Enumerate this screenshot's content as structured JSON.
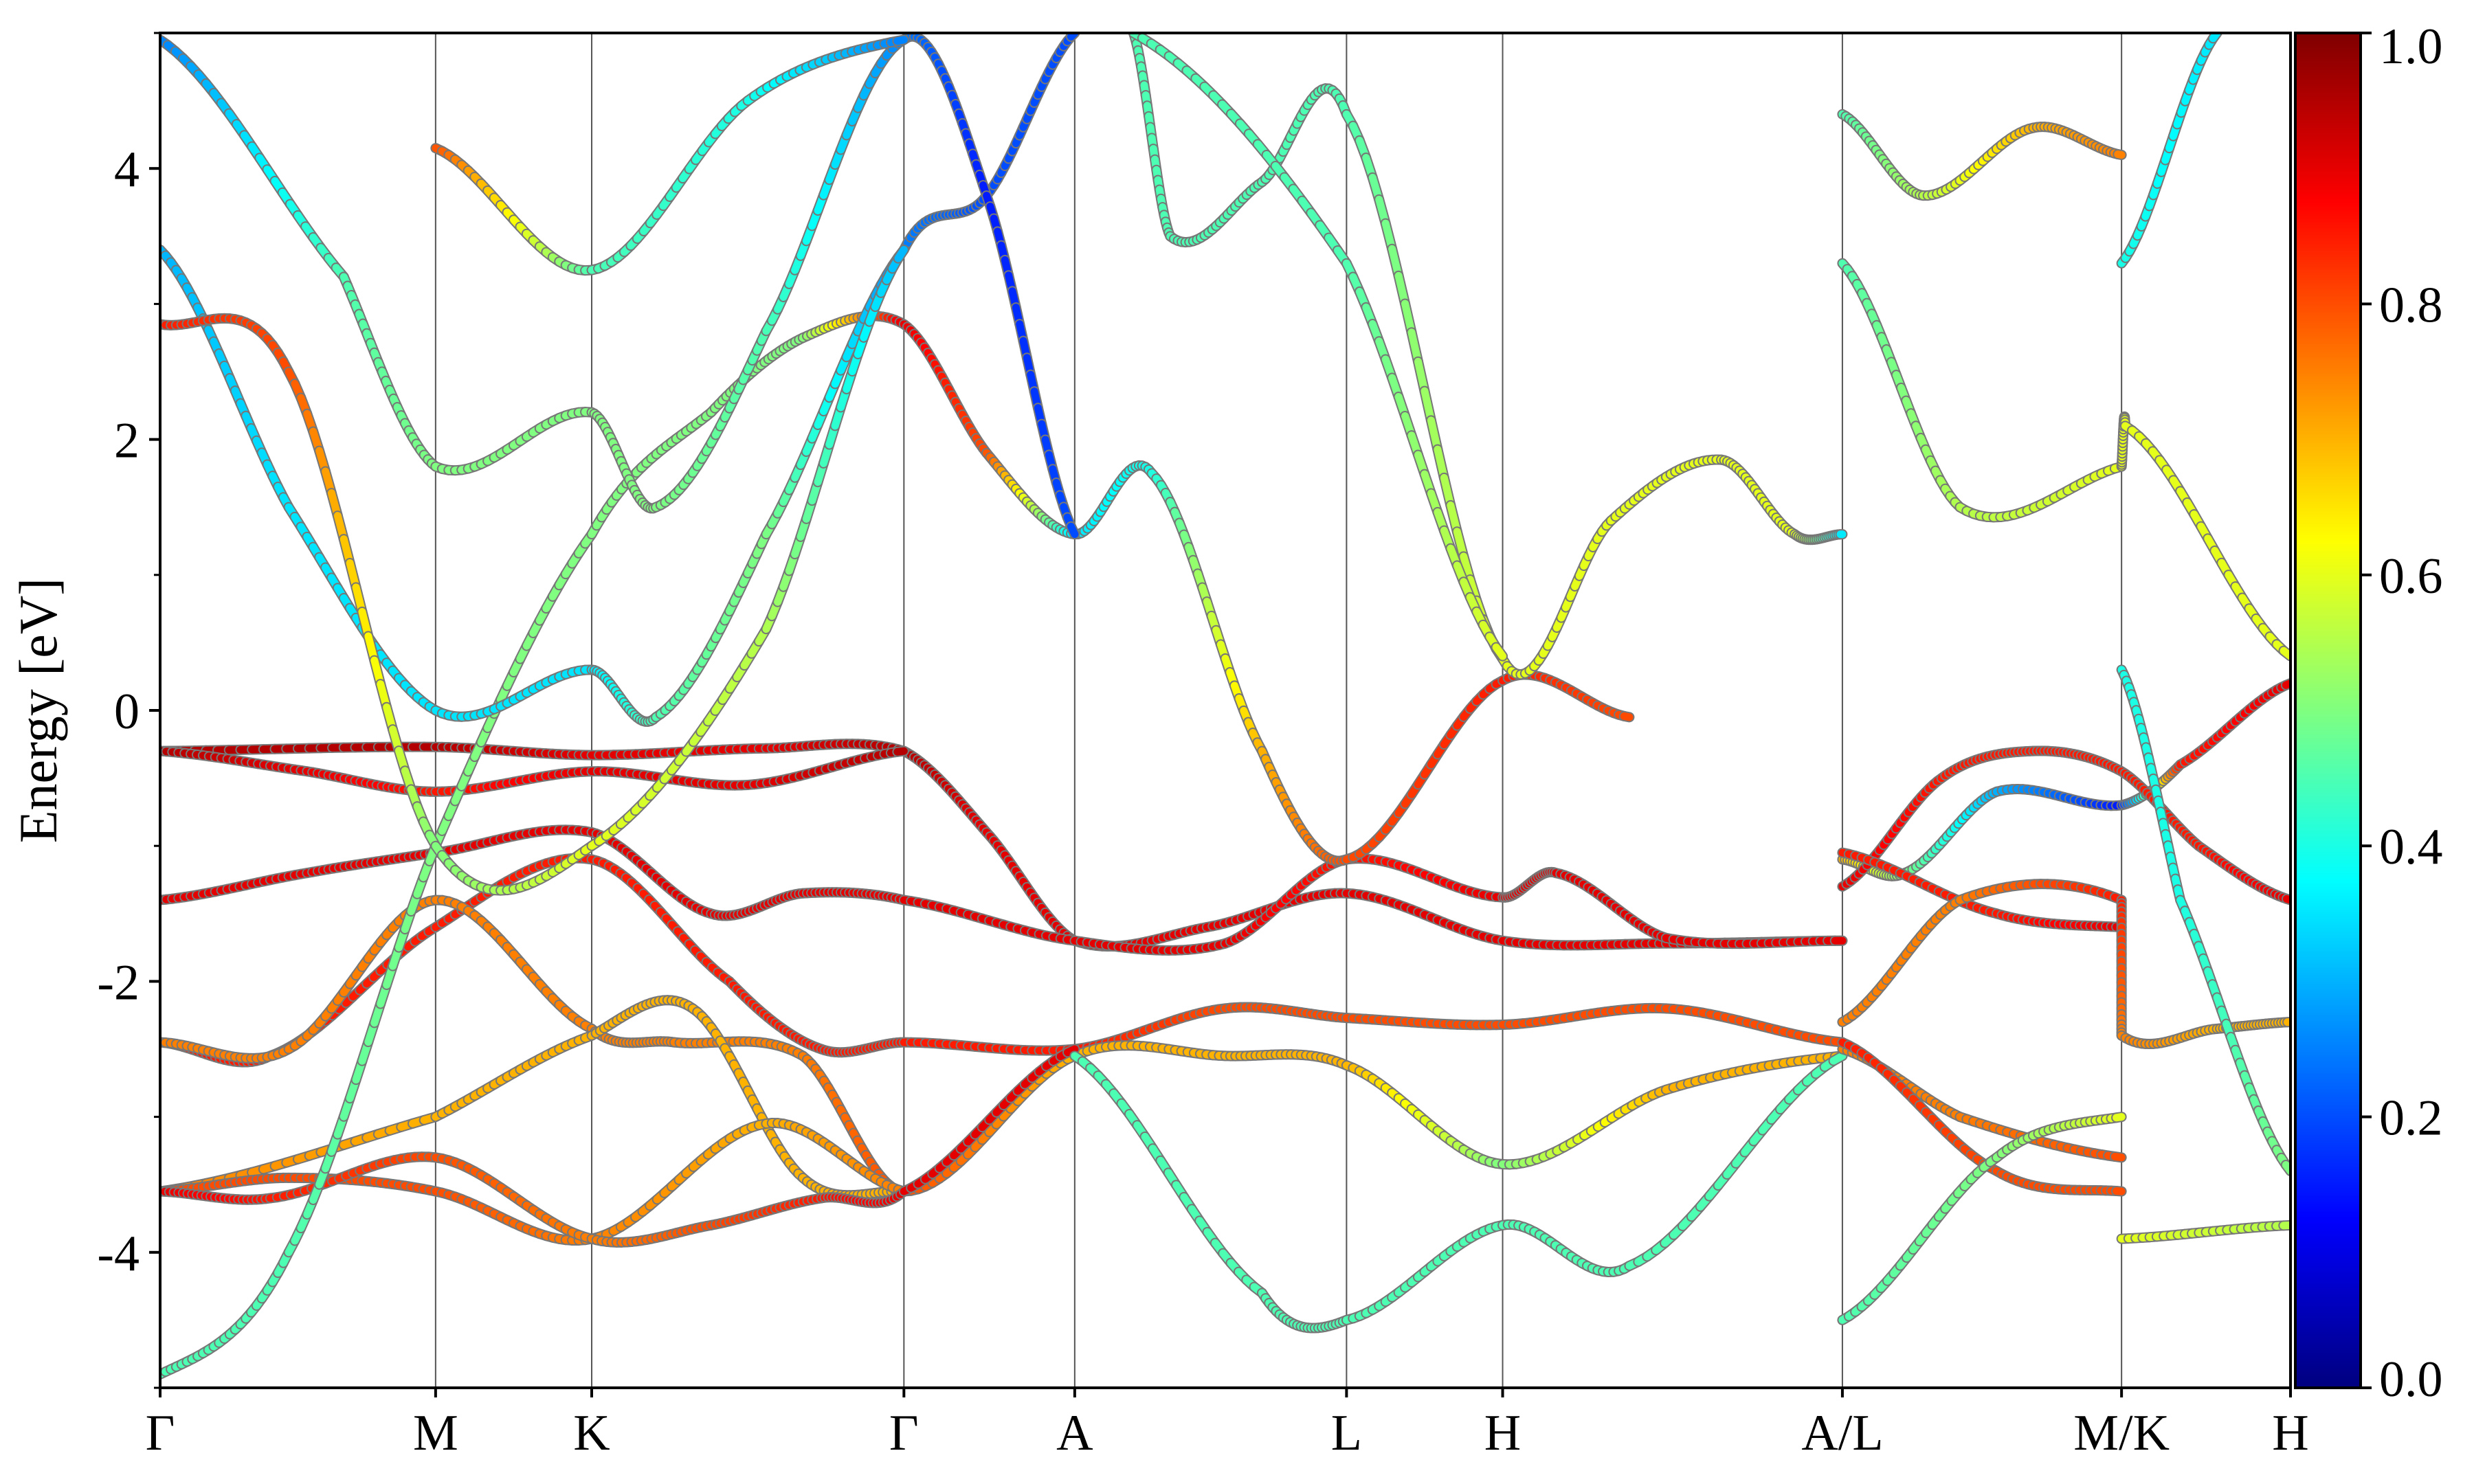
{
  "chart_data": {
    "type": "line",
    "ylabel": "Energy [eV]",
    "ylim": [
      -5,
      5
    ],
    "y_ticks": [
      {
        "value": 4,
        "label": "4"
      },
      {
        "value": 2,
        "label": "2"
      },
      {
        "value": 0,
        "label": "0"
      },
      {
        "value": -2,
        "label": "-2"
      },
      {
        "value": -4,
        "label": "-4"
      }
    ],
    "x_path_range": [
      0,
      11.6
    ],
    "kpoints": [
      {
        "label": "Γ",
        "x": 0
      },
      {
        "label": "M",
        "x": 1.5
      },
      {
        "label": "K",
        "x": 2.35
      },
      {
        "label": "Γ",
        "x": 4.05
      },
      {
        "label": "A",
        "x": 4.98
      },
      {
        "label": "L",
        "x": 6.46
      },
      {
        "label": "H",
        "x": 7.31
      },
      {
        "label": "A/L",
        "x": 9.16
      },
      {
        "label": "M/K",
        "x": 10.68
      },
      {
        "label": "H",
        "x": 11.6
      }
    ],
    "colorbar": {
      "colormap": "jet",
      "range": [
        0,
        1
      ],
      "ticks": [
        {
          "value": 1.0,
          "label": "1.0"
        },
        {
          "value": 0.8,
          "label": "0.8"
        },
        {
          "value": 0.6,
          "label": "0.6"
        },
        {
          "value": 0.4,
          "label": "0.4"
        },
        {
          "value": 0.2,
          "label": "0.2"
        },
        {
          "value": 0.0,
          "label": "0.0"
        }
      ]
    },
    "bands": [
      {
        "points": [
          [
            0,
            -0.3,
            0.95
          ],
          [
            1.5,
            -0.27,
            0.95
          ],
          [
            2.35,
            -0.33,
            0.9
          ],
          [
            3.3,
            -0.28,
            0.9
          ],
          [
            4.05,
            -0.3,
            0.95
          ],
          [
            4.5,
            -0.9,
            0.9
          ],
          [
            4.98,
            -1.7,
            0.9
          ],
          [
            5.7,
            -1.6,
            0.9
          ],
          [
            6.46,
            -1.35,
            0.9
          ],
          [
            7.31,
            -1.7,
            0.9
          ],
          [
            8.2,
            -1.72,
            0.9
          ],
          [
            9.16,
            -1.7,
            0.9
          ]
        ]
      },
      {
        "points": [
          [
            0,
            -0.3,
            0.95
          ],
          [
            0.8,
            -0.45,
            0.9
          ],
          [
            1.5,
            -0.6,
            0.85
          ],
          [
            2.35,
            -0.45,
            0.9
          ],
          [
            3.2,
            -0.55,
            0.9
          ],
          [
            4.05,
            -0.3,
            0.95
          ]
        ]
      },
      {
        "points": [
          [
            0,
            -1.4,
            0.9
          ],
          [
            0.8,
            -1.2,
            0.9
          ],
          [
            1.5,
            -1.05,
            0.9
          ],
          [
            2.35,
            -0.9,
            0.9
          ],
          [
            3.0,
            -1.5,
            0.9
          ],
          [
            3.5,
            -1.35,
            0.9
          ],
          [
            4.05,
            -1.4,
            0.9
          ],
          [
            4.98,
            -1.7,
            0.9
          ],
          [
            5.8,
            -1.72,
            0.9
          ],
          [
            6.46,
            -1.1,
            0.85
          ],
          [
            7.31,
            -1.38,
            0.9
          ],
          [
            7.6,
            -1.2,
            0.9
          ],
          [
            8.2,
            -1.68,
            0.9
          ],
          [
            9.16,
            -1.7,
            0.9
          ]
        ]
      },
      {
        "points": [
          [
            0,
            -2.45,
            0.85
          ],
          [
            0.6,
            -2.55,
            0.85
          ],
          [
            1.5,
            -1.6,
            0.85
          ],
          [
            2.35,
            -1.1,
            0.85
          ],
          [
            3.1,
            -2.0,
            0.85
          ],
          [
            3.6,
            -2.5,
            0.85
          ],
          [
            4.05,
            -2.45,
            0.85
          ],
          [
            4.98,
            -2.5,
            0.85
          ],
          [
            5.8,
            -2.2,
            0.8
          ],
          [
            6.46,
            -2.27,
            0.8
          ],
          [
            7.31,
            -2.32,
            0.8
          ],
          [
            8.2,
            -2.2,
            0.8
          ],
          [
            9.16,
            -2.45,
            0.8
          ]
        ]
      },
      {
        "points": [
          [
            0,
            -2.45,
            0.75
          ],
          [
            0.7,
            -2.5,
            0.75
          ],
          [
            1.5,
            -1.4,
            0.75
          ],
          [
            2.35,
            -2.35,
            0.75
          ],
          [
            2.8,
            -2.45,
            0.75
          ],
          [
            3.5,
            -2.55,
            0.75
          ],
          [
            4.05,
            -3.55,
            0.8
          ],
          [
            4.98,
            -2.55,
            0.7
          ],
          [
            5.8,
            -2.55,
            0.7
          ],
          [
            6.46,
            -2.62,
            0.7
          ],
          [
            7.31,
            -3.35,
            0.5
          ],
          [
            8.2,
            -2.8,
            0.7
          ],
          [
            9.16,
            -2.55,
            0.7
          ]
        ]
      },
      {
        "points": [
          [
            0,
            -3.55,
            0.75
          ],
          [
            1.5,
            -3.0,
            0.7
          ],
          [
            2.35,
            -2.4,
            0.7
          ],
          [
            2.9,
            -2.2,
            0.7
          ],
          [
            3.5,
            -3.45,
            0.7
          ],
          [
            4.05,
            -3.55,
            0.7
          ]
        ]
      },
      {
        "points": [
          [
            0,
            -3.55,
            0.8
          ],
          [
            0.7,
            -3.45,
            0.8
          ],
          [
            1.5,
            -3.55,
            0.8
          ],
          [
            2.35,
            -3.9,
            0.75
          ],
          [
            3.3,
            -3.05,
            0.7
          ],
          [
            4.05,
            -3.55,
            0.75
          ]
        ]
      },
      {
        "points": [
          [
            0,
            -3.55,
            0.9
          ],
          [
            0.6,
            -3.6,
            0.85
          ],
          [
            1.5,
            -3.3,
            0.8
          ],
          [
            2.35,
            -3.9,
            0.75
          ],
          [
            3.0,
            -3.8,
            0.8
          ],
          [
            3.6,
            -3.6,
            0.85
          ],
          [
            4.05,
            -3.55,
            0.9
          ],
          [
            4.98,
            -2.5,
            0.9
          ]
        ]
      },
      {
        "points": [
          [
            0,
            -4.9,
            0.45
          ],
          [
            0.7,
            -4.0,
            0.45
          ],
          [
            1.5,
            -1.0,
            0.5
          ],
          [
            2.35,
            1.3,
            0.5
          ],
          [
            3.0,
            2.2,
            0.5
          ],
          [
            3.5,
            2.75,
            0.5
          ],
          [
            4.05,
            2.85,
            0.9
          ],
          [
            4.5,
            1.9,
            0.8
          ],
          [
            4.98,
            1.3,
            0.35
          ],
          [
            5.4,
            1.75,
            0.4
          ],
          [
            6.0,
            -0.3,
            0.7
          ],
          [
            6.46,
            -1.1,
            0.8
          ],
          [
            7.31,
            0.22,
            0.85
          ],
          [
            8.0,
            -0.05,
            0.8
          ]
        ]
      },
      {
        "points": [
          [
            0,
            3.4,
            0.3
          ],
          [
            0.7,
            1.5,
            0.35
          ],
          [
            1.5,
            0.0,
            0.35
          ],
          [
            2.35,
            0.3,
            0.35
          ],
          [
            2.7,
            -0.05,
            0.45
          ],
          [
            3.3,
            1.3,
            0.5
          ],
          [
            4.05,
            3.4,
            0.25
          ],
          [
            4.5,
            3.8,
            0.2
          ],
          [
            4.98,
            5.0,
            0.2
          ]
        ]
      },
      {
        "points": [
          [
            0,
            2.85,
            0.85
          ],
          [
            0.7,
            2.5,
            0.8
          ],
          [
            1.5,
            -1.0,
            0.5
          ],
          [
            2.35,
            -1.0,
            0.6
          ],
          [
            3.3,
            0.6,
            0.55
          ],
          [
            4.05,
            3.4,
            0.3
          ]
        ]
      },
      {
        "points": [
          [
            0,
            4.95,
            0.25
          ],
          [
            1.0,
            3.2,
            0.45
          ],
          [
            1.5,
            1.8,
            0.5
          ],
          [
            2.35,
            2.2,
            0.5
          ],
          [
            2.7,
            1.5,
            0.5
          ],
          [
            3.3,
            2.8,
            0.45
          ],
          [
            4.05,
            4.95,
            0.25
          ],
          [
            4.5,
            3.8,
            0.15
          ],
          [
            4.98,
            1.3,
            0.2
          ]
        ]
      },
      {
        "points": [
          [
            1.5,
            4.15,
            0.8
          ],
          [
            2.35,
            3.25,
            0.45
          ],
          [
            3.2,
            4.5,
            0.4
          ],
          [
            4.05,
            4.95,
            0.25
          ]
        ]
      },
      {
        "points": [
          [
            5.3,
            5.0,
            0.45
          ],
          [
            5.5,
            3.5,
            0.45
          ],
          [
            6.0,
            3.9,
            0.45
          ],
          [
            6.46,
            4.4,
            0.45
          ],
          [
            7.31,
            0.38,
            0.6
          ],
          [
            7.9,
            1.4,
            0.6
          ],
          [
            8.5,
            1.85,
            0.6
          ],
          [
            8.9,
            1.3,
            0.6
          ],
          [
            9.16,
            1.3,
            0.35
          ]
        ]
      },
      {
        "points": [
          [
            5.3,
            5.0,
            0.45
          ],
          [
            6.46,
            3.3,
            0.45
          ],
          [
            7.31,
            0.4,
            0.6
          ]
        ]
      },
      {
        "points": [
          [
            4.98,
            -2.55,
            0.45
          ],
          [
            6.0,
            -4.3,
            0.45
          ],
          [
            6.46,
            -4.5,
            0.45
          ],
          [
            7.31,
            -3.8,
            0.45
          ],
          [
            8.0,
            -4.1,
            0.45
          ],
          [
            9.16,
            -2.55,
            0.45
          ]
        ]
      },
      {
        "points": [
          [
            9.16,
            -1.1,
            0.7
          ],
          [
            9.5,
            -1.2,
            0.5
          ],
          [
            10.0,
            -0.6,
            0.3
          ],
          [
            10.68,
            -0.7,
            0.15
          ],
          [
            11.0,
            -0.4,
            0.85
          ],
          [
            11.6,
            0.2,
            0.9
          ]
        ]
      },
      {
        "points": [
          [
            9.16,
            -1.3,
            0.9
          ],
          [
            9.7,
            -0.5,
            0.85
          ],
          [
            10.2,
            -0.3,
            0.85
          ],
          [
            10.68,
            -0.45,
            0.85
          ],
          [
            11.1,
            -1.0,
            0.85
          ],
          [
            11.6,
            -1.4,
            0.9
          ]
        ]
      },
      {
        "points": [
          [
            9.16,
            -1.05,
            0.85
          ],
          [
            10.0,
            -1.5,
            0.85
          ],
          [
            10.68,
            -1.6,
            0.9
          ]
        ]
      },
      {
        "points": [
          [
            9.16,
            -2.3,
            0.75
          ],
          [
            9.8,
            -1.4,
            0.75
          ],
          [
            10.68,
            -1.4,
            0.85
          ],
          [
            10.68,
            -2.4,
            0.75
          ],
          [
            11.2,
            -2.35,
            0.7
          ],
          [
            11.6,
            -2.3,
            0.7
          ]
        ]
      },
      {
        "points": [
          [
            9.16,
            -2.5,
            0.75
          ],
          [
            9.8,
            -3.0,
            0.75
          ],
          [
            10.68,
            -3.3,
            0.8
          ]
        ]
      },
      {
        "points": [
          [
            9.16,
            -2.45,
            0.85
          ],
          [
            10.0,
            -3.4,
            0.8
          ],
          [
            10.68,
            -3.55,
            0.8
          ]
        ]
      },
      {
        "points": [
          [
            9.16,
            -4.5,
            0.45
          ],
          [
            10.0,
            -3.3,
            0.5
          ],
          [
            10.68,
            -3.0,
            0.6
          ]
        ]
      },
      {
        "points": [
          [
            9.16,
            3.3,
            0.45
          ],
          [
            9.8,
            1.5,
            0.55
          ],
          [
            10.68,
            1.8,
            0.6
          ],
          [
            10.7,
            2.1,
            0.6
          ],
          [
            11.6,
            0.4,
            0.6
          ]
        ]
      },
      {
        "points": [
          [
            9.16,
            4.4,
            0.45
          ],
          [
            9.6,
            3.8,
            0.55
          ],
          [
            10.2,
            4.3,
            0.7
          ],
          [
            10.68,
            4.1,
            0.75
          ]
        ]
      },
      {
        "points": [
          [
            10.68,
            3.3,
            0.4
          ],
          [
            11.2,
            5.0,
            0.35
          ]
        ]
      },
      {
        "points": [
          [
            10.68,
            0.3,
            0.4
          ],
          [
            11.0,
            -1.4,
            0.4
          ],
          [
            11.6,
            -3.4,
            0.5
          ]
        ]
      },
      {
        "points": [
          [
            10.68,
            -3.9,
            0.6
          ],
          [
            11.6,
            -3.8,
            0.55
          ]
        ]
      }
    ]
  }
}
